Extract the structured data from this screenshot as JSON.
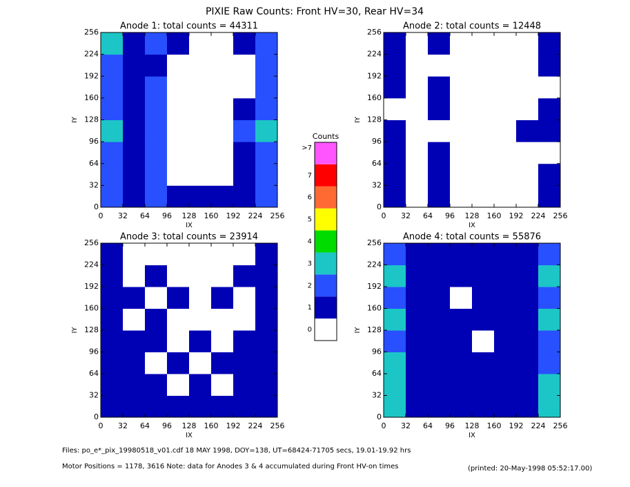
{
  "title": "PIXIE Raw Counts:  Front HV=30, Rear HV=34",
  "chart_data": [
    {
      "type": "heatmap",
      "title": "Anode 1: total counts = 44311",
      "xlabel": "IX",
      "ylabel": "IY",
      "xlim": [
        0,
        256
      ],
      "ylim": [
        0,
        256
      ],
      "xticks": [
        0,
        32,
        64,
        96,
        128,
        160,
        192,
        224,
        256
      ],
      "yticks": [
        0,
        32,
        64,
        96,
        128,
        160,
        192,
        224,
        256
      ],
      "values": [
        [
          2,
          1,
          2,
          1,
          1,
          1,
          1,
          2
        ],
        [
          2,
          1,
          2,
          0,
          0,
          0,
          1,
          2
        ],
        [
          2,
          1,
          2,
          0,
          0,
          0,
          1,
          2
        ],
        [
          3,
          1,
          2,
          0,
          0,
          0,
          2,
          3
        ],
        [
          2,
          1,
          2,
          0,
          0,
          0,
          1,
          2
        ],
        [
          2,
          1,
          2,
          0,
          0,
          0,
          0,
          2
        ],
        [
          2,
          1,
          1,
          0,
          0,
          0,
          0,
          2
        ],
        [
          3,
          1,
          2,
          1,
          0,
          0,
          1,
          2
        ]
      ]
    },
    {
      "type": "heatmap",
      "title": "Anode 2: total counts = 12448",
      "xlabel": "IX",
      "ylabel": "IY",
      "xlim": [
        0,
        256
      ],
      "ylim": [
        0,
        256
      ],
      "xticks": [
        0,
        32,
        64,
        96,
        128,
        160,
        192,
        224,
        256
      ],
      "yticks": [
        0,
        32,
        64,
        96,
        128,
        160,
        192,
        224,
        256
      ],
      "values": [
        [
          1,
          0,
          1,
          0,
          0,
          0,
          0,
          1
        ],
        [
          1,
          0,
          1,
          0,
          0,
          0,
          0,
          1
        ],
        [
          1,
          0,
          1,
          0,
          0,
          0,
          0,
          0
        ],
        [
          1,
          0,
          0,
          0,
          0,
          0,
          1,
          1
        ],
        [
          0,
          0,
          1,
          0,
          0,
          0,
          0,
          1
        ],
        [
          1,
          0,
          1,
          0,
          0,
          0,
          0,
          0
        ],
        [
          1,
          0,
          0,
          0,
          0,
          0,
          0,
          1
        ],
        [
          1,
          0,
          1,
          0,
          0,
          0,
          0,
          1
        ]
      ]
    },
    {
      "type": "heatmap",
      "title": "Anode 3: total counts = 23914",
      "xlabel": "IX",
      "ylabel": "IY",
      "xlim": [
        0,
        256
      ],
      "ylim": [
        0,
        256
      ],
      "xticks": [
        0,
        32,
        64,
        96,
        128,
        160,
        192,
        224,
        256
      ],
      "yticks": [
        0,
        32,
        64,
        96,
        128,
        160,
        192,
        224,
        256
      ],
      "values": [
        [
          1,
          1,
          1,
          1,
          1,
          1,
          1,
          1
        ],
        [
          1,
          1,
          1,
          0,
          1,
          0,
          1,
          1
        ],
        [
          1,
          1,
          0,
          1,
          0,
          1,
          1,
          1
        ],
        [
          1,
          1,
          1,
          0,
          1,
          0,
          1,
          1
        ],
        [
          1,
          0,
          1,
          0,
          0,
          0,
          0,
          1
        ],
        [
          1,
          1,
          0,
          1,
          0,
          1,
          0,
          1
        ],
        [
          1,
          0,
          1,
          0,
          0,
          0,
          1,
          1
        ],
        [
          1,
          0,
          0,
          0,
          0,
          0,
          0,
          1
        ]
      ]
    },
    {
      "type": "heatmap",
      "title": "Anode 4: total counts = 55876",
      "xlabel": "IX",
      "ylabel": "IY",
      "xlim": [
        0,
        256
      ],
      "ylim": [
        0,
        256
      ],
      "xticks": [
        0,
        32,
        64,
        96,
        128,
        160,
        192,
        224,
        256
      ],
      "yticks": [
        0,
        32,
        64,
        96,
        128,
        160,
        192,
        224,
        256
      ],
      "values": [
        [
          3,
          1,
          1,
          1,
          1,
          1,
          1,
          3
        ],
        [
          3,
          1,
          1,
          1,
          1,
          1,
          1,
          3
        ],
        [
          3,
          1,
          1,
          1,
          1,
          1,
          1,
          2
        ],
        [
          2,
          1,
          1,
          1,
          0,
          1,
          1,
          2
        ],
        [
          3,
          1,
          1,
          1,
          1,
          1,
          1,
          3
        ],
        [
          2,
          1,
          1,
          0,
          1,
          1,
          1,
          2
        ],
        [
          3,
          1,
          1,
          1,
          1,
          1,
          1,
          3
        ],
        [
          2,
          1,
          1,
          1,
          1,
          1,
          1,
          2
        ]
      ]
    }
  ],
  "colorbar": {
    "title": "Counts",
    "labels": [
      "0",
      "1",
      "2",
      "3",
      "4",
      "5",
      "6",
      "7",
      ">7"
    ],
    "colors": [
      "#ffffff",
      "#0000b4",
      "#2850ff",
      "#1cc6c6",
      "#00dc00",
      "#ffff00",
      "#ff6a32",
      "#ff0000",
      "#ff55ff"
    ]
  },
  "footer": {
    "files": "Files: po_e*_pix_19980518_v01.cdf    18 MAY 1998, DOY=138, UT=68424-71705 secs, 19.01-19.92 hrs",
    "motor": "Motor Positions = 1178, 3616   Note: data for Anodes 3 & 4 accumulated during Front HV-on times",
    "printed": "(printed: 20-May-1998 05:52:17.00)"
  }
}
